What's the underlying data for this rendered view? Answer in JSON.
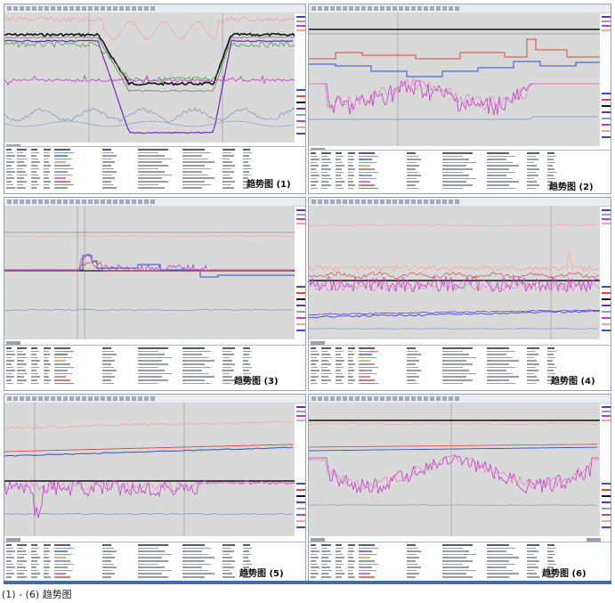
{
  "panels": [
    {
      "id": "p1",
      "caption": "趋势图 (1)"
    },
    {
      "id": "p2",
      "caption": "趋势图 (2)"
    },
    {
      "id": "p3",
      "caption": "趋势图 (3)"
    },
    {
      "id": "p4",
      "caption": "趋势图 (4)"
    },
    {
      "id": "p5",
      "caption": "趋势图 (5)"
    },
    {
      "id": "p6",
      "caption": "趋势图 (6)"
    }
  ],
  "footer": {
    "text": "(1) - (6) 趋势图"
  },
  "colors": {
    "plot_bg": "#d9d9d9",
    "black": "#111111",
    "salmon": "#f4a59a",
    "magenta": "#c23bc9",
    "pink": "#e879c3",
    "blue": "#2f4fe0",
    "red": "#e0483a",
    "purple": "#6b2bbf",
    "steel": "#8aa0c8",
    "green": "#4aa84a",
    "grey": "#8a8a8a"
  }
}
